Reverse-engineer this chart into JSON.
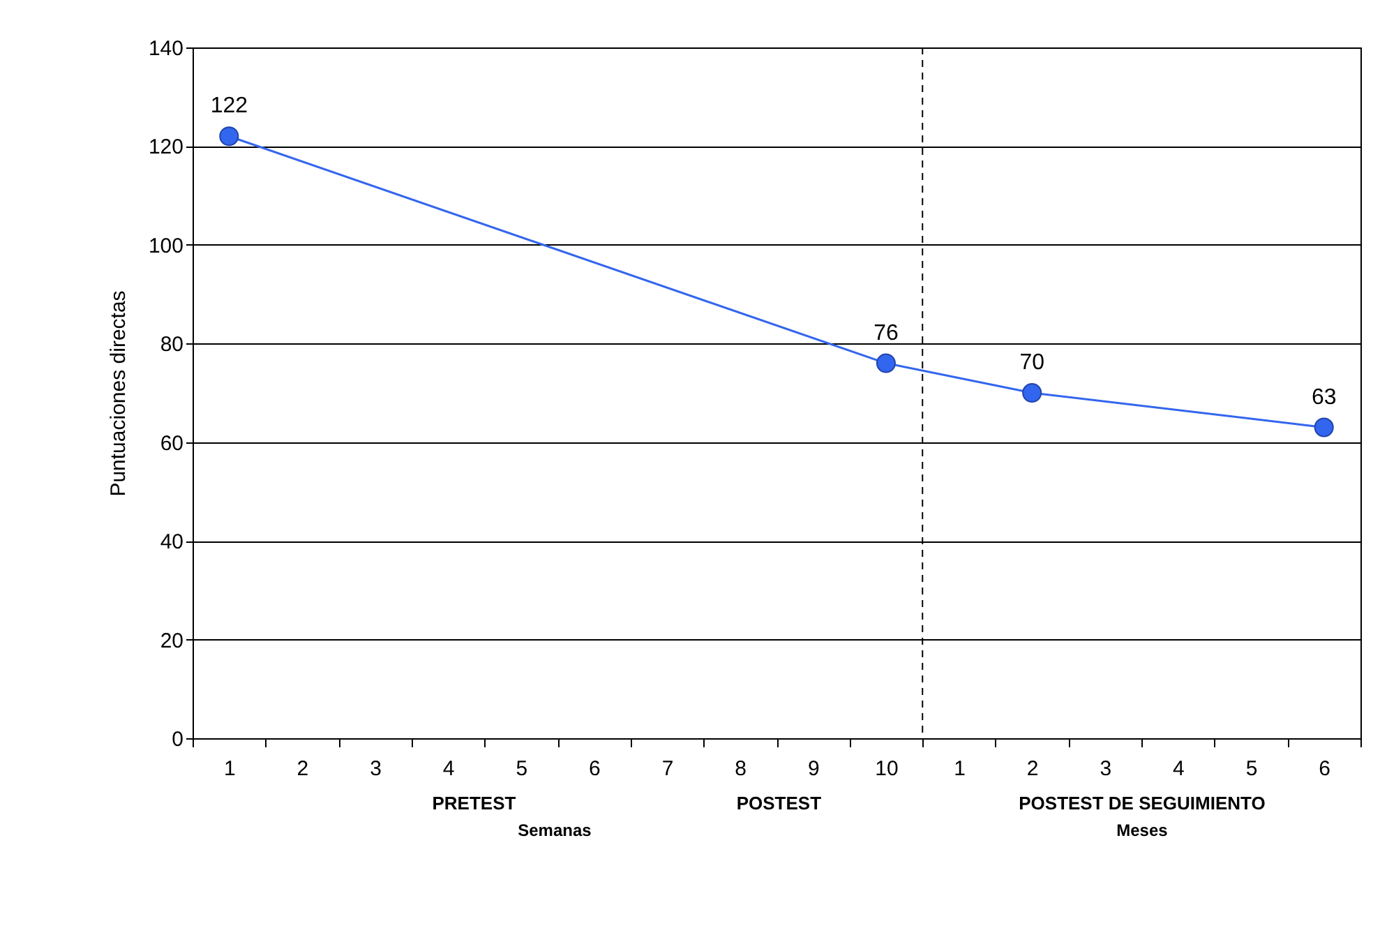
{
  "chart_data": {
    "type": "line",
    "ylabel": "Puntuaciones directas",
    "categories": [
      "1",
      "2",
      "3",
      "4",
      "5",
      "6",
      "7",
      "8",
      "9",
      "10",
      "1",
      "2",
      "3",
      "4",
      "5",
      "6"
    ],
    "series": [
      {
        "color": "#3366ee",
        "values": [
          122,
          null,
          null,
          null,
          null,
          null,
          null,
          null,
          null,
          76,
          null,
          70,
          null,
          null,
          null,
          63
        ]
      }
    ],
    "ylim": [
      0,
      140
    ],
    "yticks": [
      0,
      20,
      40,
      60,
      80,
      100,
      120,
      140
    ],
    "grid": "y",
    "marker": "circle",
    "data_labels": true,
    "ref_lines": [
      {
        "axis": "x",
        "value": "10",
        "line_style": "dashed",
        "color": "#000000"
      }
    ],
    "annotations": [
      "PRETEST",
      "POSTEST",
      "POSTEST DE SEGUIMIENTO",
      "Semanas",
      "Meses"
    ]
  }
}
